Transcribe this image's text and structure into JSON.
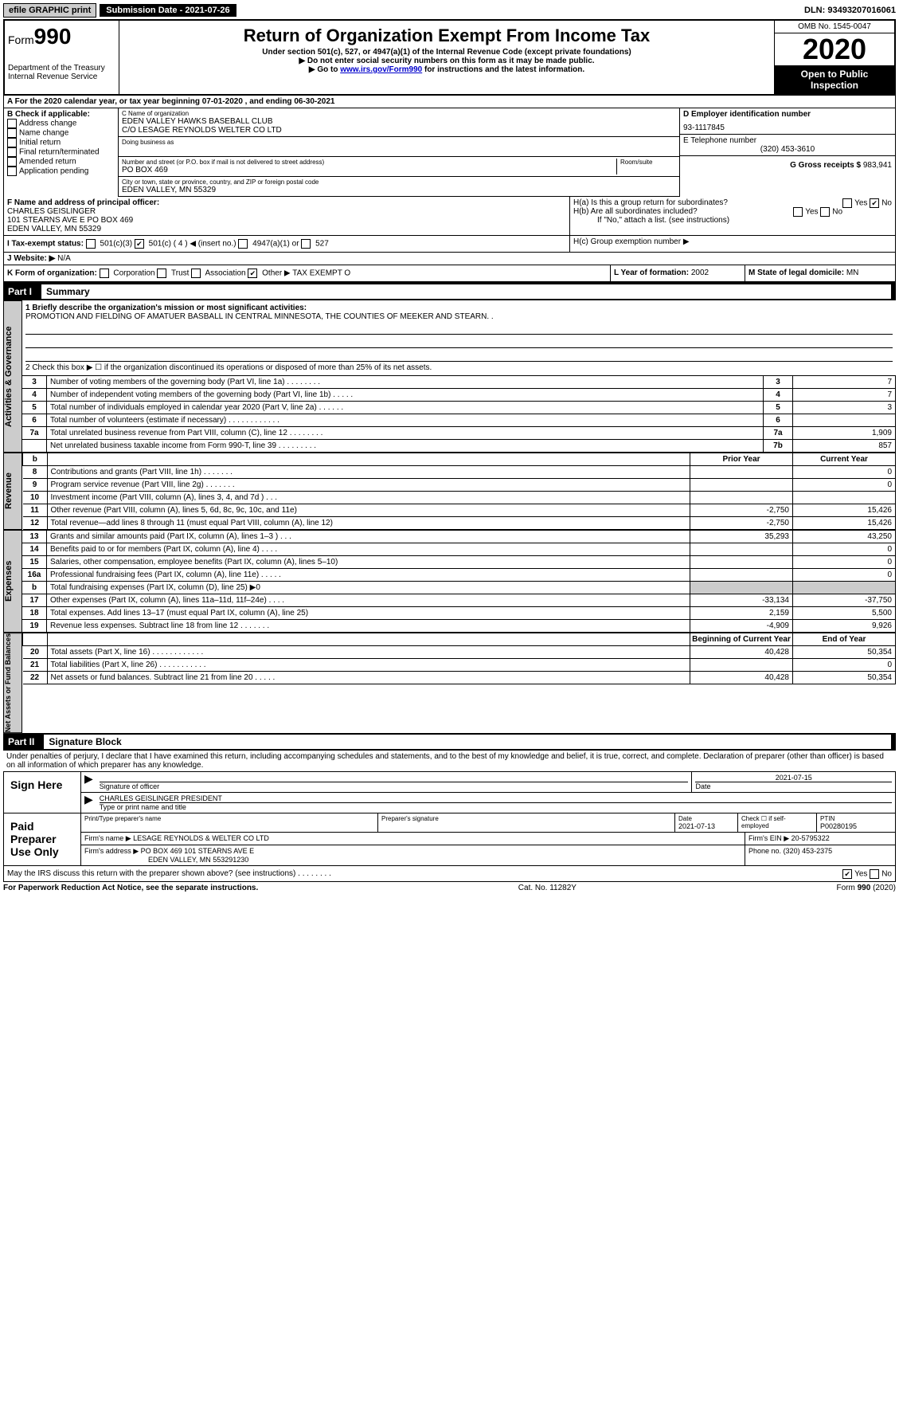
{
  "topbar": {
    "efile": "efile GRAPHIC print",
    "submission": "Submission Date - 2021-07-26",
    "dln": "DLN: 93493207016061"
  },
  "header": {
    "form_prefix": "Form",
    "form_number": "990",
    "dept": "Department of the Treasury\nInternal Revenue Service",
    "title": "Return of Organization Exempt From Income Tax",
    "sub1": "Under section 501(c), 527, or 4947(a)(1) of the Internal Revenue Code (except private foundations)",
    "sub2": "▶ Do not enter social security numbers on this form as it may be made public.",
    "sub3_pre": "▶ Go to ",
    "sub3_link": "www.irs.gov/Form990",
    "sub3_post": " for instructions and the latest information.",
    "omb": "OMB No. 1545-0047",
    "year": "2020",
    "open": "Open to Public Inspection"
  },
  "period": "A For the 2020 calendar year, or tax year beginning 07-01-2020   , and ending 06-30-2021",
  "checkboxes": {
    "title": "B Check if applicable:",
    "items": [
      "Address change",
      "Name change",
      "Initial return",
      "Final return/terminated",
      "Amended return",
      "Application pending"
    ]
  },
  "org": {
    "name_label": "C Name of organization",
    "name": "EDEN VALLEY HAWKS BASEBALL CLUB",
    "care_of": "C/O LESAGE REYNOLDS WELTER CO LTD",
    "dba_label": "Doing business as",
    "addr_label": "Number and street (or P.O. box if mail is not delivered to street address)",
    "room_label": "Room/suite",
    "addr": "PO BOX 469",
    "city_label": "City or town, state or province, country, and ZIP or foreign postal code",
    "city": "EDEN VALLEY, MN  55329"
  },
  "ein": {
    "label": "D Employer identification number",
    "value": "93-1117845"
  },
  "phone": {
    "label": "E Telephone number",
    "value": "(320) 453-3610"
  },
  "gross": {
    "label": "G Gross receipts $",
    "value": "983,941"
  },
  "officer": {
    "label": "F Name and address of principal officer:",
    "name": "CHARLES GEISLINGER",
    "addr1": "101 STEARNS AVE E PO BOX 469",
    "addr2": "EDEN VALLEY, MN  55329"
  },
  "group": {
    "ha": "H(a)  Is this a group return for subordinates?",
    "hb": "H(b)  Are all subordinates included?",
    "hb_note": "If \"No,\" attach a list. (see instructions)",
    "hc": "H(c)  Group exemption number ▶",
    "yes": "Yes",
    "no": "No"
  },
  "tax_status": {
    "label": "I   Tax-exempt status:",
    "opt1": "501(c)(3)",
    "opt2": "501(c) ( 4 ) ◀ (insert no.)",
    "opt3": "4947(a)(1) or",
    "opt4": "527"
  },
  "website": {
    "label": "J   Website: ▶",
    "value": "N/A"
  },
  "formation": {
    "k": "K Form of organization:",
    "opts": [
      "Corporation",
      "Trust",
      "Association",
      "Other ▶"
    ],
    "other": "TAX EXEMPT O",
    "l_label": "L Year of formation:",
    "l_val": "2002",
    "m_label": "M State of legal domicile:",
    "m_val": "MN"
  },
  "part1": {
    "label": "Part I",
    "title": "Summary"
  },
  "mission": {
    "q": "1  Briefly describe the organization's mission or most significant activities:",
    "text": "PROMOTION AND FIELDING OF AMATUER BASBALL IN CENTRAL MINNESOTA, THE COUNTIES OF MEEKER AND STEARN. ."
  },
  "line2": "2   Check this box ▶ ☐  if the organization discontinued its operations or disposed of more than 25% of its net assets.",
  "governance_rows": [
    {
      "n": "3",
      "d": "Number of voting members of the governing body (Part VI, line 1a)  .    .    .    .    .    .    .    .",
      "b": "3",
      "v": "7"
    },
    {
      "n": "4",
      "d": "Number of independent voting members of the governing body (Part VI, line 1b)  .    .    .    .    .",
      "b": "4",
      "v": "7"
    },
    {
      "n": "5",
      "d": "Total number of individuals employed in calendar year 2020 (Part V, line 2a)   .    .    .    .    .    .",
      "b": "5",
      "v": "3"
    },
    {
      "n": "6",
      "d": "Total number of volunteers (estimate if necessary)  .    .    .    .    .    .    .    .    .    .    .    .",
      "b": "6",
      "v": ""
    },
    {
      "n": "7a",
      "d": "Total unrelated business revenue from Part VIII, column (C), line 12   .    .    .    .    .    .    .    .",
      "b": "7a",
      "v": "1,909"
    },
    {
      "n": "",
      "d": "Net unrelated business taxable income from Form 990-T, line 39  .    .    .    .    .    .    .    .    .",
      "b": "7b",
      "v": "857"
    }
  ],
  "col_headers": {
    "b": "b",
    "prior": "Prior Year",
    "current": "Current Year"
  },
  "revenue_rows": [
    {
      "n": "8",
      "d": "Contributions and grants (Part VIII, line 1h)  .    .    .    .    .    .    .",
      "p": "",
      "c": "0"
    },
    {
      "n": "9",
      "d": "Program service revenue (Part VIII, line 2g)   .    .    .    .    .    .    .",
      "p": "",
      "c": "0"
    },
    {
      "n": "10",
      "d": "Investment income (Part VIII, column (A), lines 3, 4, and 7d )  .    .    .",
      "p": "",
      "c": ""
    },
    {
      "n": "11",
      "d": "Other revenue (Part VIII, column (A), lines 5, 6d, 8c, 9c, 10c, and 11e)",
      "p": "-2,750",
      "c": "15,426"
    },
    {
      "n": "12",
      "d": "Total revenue—add lines 8 through 11 (must equal Part VIII, column (A), line 12)",
      "p": "-2,750",
      "c": "15,426"
    }
  ],
  "expense_rows": [
    {
      "n": "13",
      "d": "Grants and similar amounts paid (Part IX, column (A), lines 1–3 )  .    .    .",
      "p": "35,293",
      "c": "43,250"
    },
    {
      "n": "14",
      "d": "Benefits paid to or for members (Part IX, column (A), line 4)  .    .    .    .",
      "p": "",
      "c": "0"
    },
    {
      "n": "15",
      "d": "Salaries, other compensation, employee benefits (Part IX, column (A), lines 5–10)",
      "p": "",
      "c": "0"
    },
    {
      "n": "16a",
      "d": "Professional fundraising fees (Part IX, column (A), line 11e)  .    .    .    .    .",
      "p": "",
      "c": "0"
    },
    {
      "n": "b",
      "d": "Total fundraising expenses (Part IX, column (D), line 25) ▶0",
      "p": "shade",
      "c": "shade"
    },
    {
      "n": "17",
      "d": "Other expenses (Part IX, column (A), lines 11a–11d, 11f–24e)  .    .    .    .",
      "p": "-33,134",
      "c": "-37,750"
    },
    {
      "n": "18",
      "d": "Total expenses. Add lines 13–17 (must equal Part IX, column (A), line 25)",
      "p": "2,159",
      "c": "5,500"
    },
    {
      "n": "19",
      "d": "Revenue less expenses. Subtract line 18 from line 12  .    .    .    .    .    .    .",
      "p": "-4,909",
      "c": "9,926"
    }
  ],
  "balance_headers": {
    "begin": "Beginning of Current Year",
    "end": "End of Year"
  },
  "balance_rows": [
    {
      "n": "20",
      "d": "Total assets (Part X, line 16)  .    .    .    .    .    .    .    .    .    .    .    .",
      "p": "40,428",
      "c": "50,354"
    },
    {
      "n": "21",
      "d": "Total liabilities (Part X, line 26)  .    .    .    .    .    .    .    .    .    .    .",
      "p": "",
      "c": "0"
    },
    {
      "n": "22",
      "d": "Net assets or fund balances. Subtract line 21 from line 20  .    .    .    .    .",
      "p": "40,428",
      "c": "50,354"
    }
  ],
  "vlabels": {
    "gov": "Activities & Governance",
    "rev": "Revenue",
    "exp": "Expenses",
    "bal": "Net Assets or Fund Balances"
  },
  "part2": {
    "label": "Part II",
    "title": "Signature Block"
  },
  "perjury": "Under penalties of perjury, I declare that I have examined this return, including accompanying schedules and statements, and to the best of my knowledge and belief, it is true, correct, and complete. Declaration of preparer (other than officer) is based on all information of which preparer has any knowledge.",
  "sign": {
    "here": "Sign Here",
    "sig_label": "Signature of officer",
    "date": "2021-07-15",
    "date_label": "Date",
    "name": "CHARLES GEISLINGER PRESIDENT",
    "name_label": "Type or print name and title"
  },
  "preparer": {
    "title": "Paid Preparer Use Only",
    "h1": "Print/Type preparer's name",
    "h2": "Preparer's signature",
    "h3": "Date",
    "h3v": "2021-07-13",
    "h4": "Check ☐ if self-employed",
    "h5": "PTIN",
    "h5v": "P00280195",
    "firm_name_label": "Firm's name     ▶",
    "firm_name": "LESAGE REYNOLDS & WELTER CO LTD",
    "firm_ein_label": "Firm's EIN ▶",
    "firm_ein": "20-5795322",
    "firm_addr_label": "Firm's address ▶",
    "firm_addr": "PO BOX 469 101 STEARNS AVE E",
    "firm_city": "EDEN VALLEY, MN  553291230",
    "phone_label": "Phone no.",
    "phone": "(320) 453-2375"
  },
  "discuss": "May the IRS discuss this return with the preparer shown above? (see instructions)   .    .    .    .    .    .    .    .",
  "footer": {
    "pra": "For Paperwork Reduction Act Notice, see the separate instructions.",
    "cat": "Cat. No. 11282Y",
    "form": "Form 990 (2020)"
  }
}
